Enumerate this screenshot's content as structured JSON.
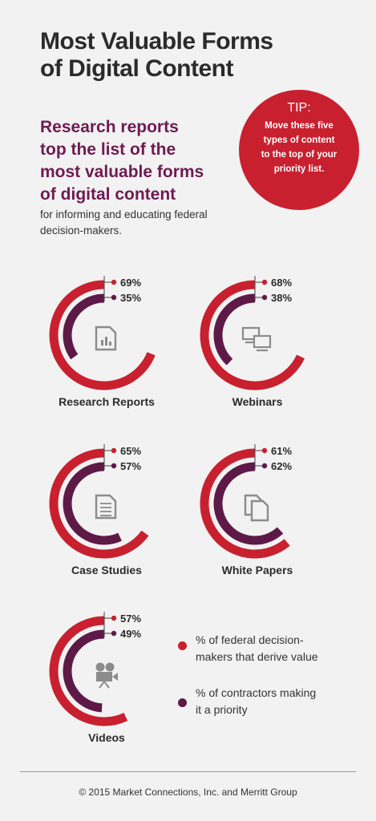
{
  "title": {
    "line1": "Most Valuable Forms",
    "line2": "of Digital Content"
  },
  "subhead": {
    "lines": [
      "Research reports",
      "top the list of the",
      "most valuable forms",
      "of digital content"
    ]
  },
  "subtext": {
    "lines": [
      "for informing and educating federal",
      "decision-makers."
    ]
  },
  "tip": {
    "label": "TIP:",
    "lines": [
      "Move these five",
      "types of content",
      "to the top of your",
      "priority list."
    ]
  },
  "colors": {
    "federal": "#c8202f",
    "contractors": "#5e1a47",
    "icon": "#8c8c8c"
  },
  "chart_data": {
    "type": "radial-bar",
    "series": [
      {
        "name": "% of federal decision-makers that derive value"
      },
      {
        "name": "% of contractors making it a priority"
      }
    ],
    "categories": [
      {
        "label": "Research Reports",
        "icon": "report-chart-icon",
        "federal": 69,
        "contractors": 35,
        "federal_text": "69%",
        "contractors_text": "35%"
      },
      {
        "label": "Webinars",
        "icon": "computers-icon",
        "federal": 68,
        "contractors": 38,
        "federal_text": "68%",
        "contractors_text": "38%"
      },
      {
        "label": "Case Studies",
        "icon": "document-icon",
        "federal": 65,
        "contractors": 57,
        "federal_text": "65%",
        "contractors_text": "57%"
      },
      {
        "label": "White Papers",
        "icon": "copy-pages-icon",
        "federal": 61,
        "contractors": 62,
        "federal_text": "61%",
        "contractors_text": "62%"
      },
      {
        "label": "Videos",
        "icon": "video-camera-icon",
        "federal": 57,
        "contractors": 49,
        "federal_text": "57%",
        "contractors_text": "49%"
      }
    ]
  },
  "legend": {
    "federal": {
      "line1": "% of federal decision-",
      "line2": "makers that derive value"
    },
    "contractors": {
      "line1": "% of contractors making",
      "line2": "it a priority"
    }
  },
  "footer": "© 2015 Market Connections, Inc. and Merritt Group"
}
